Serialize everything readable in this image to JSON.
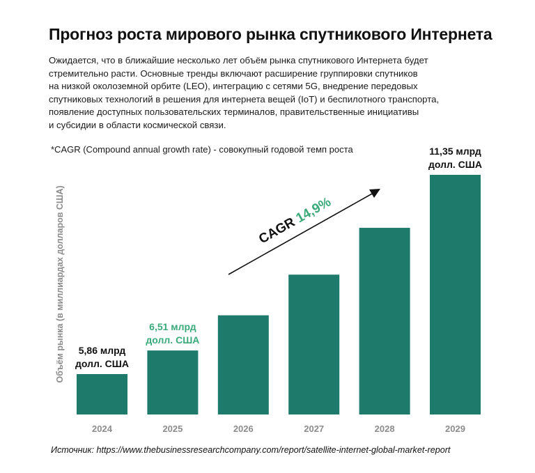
{
  "title": "Прогноз роста мирового рынка спутникового Интернета",
  "description": [
    "Ожидается, что в ближайшие несколько лет объём рынка спутникового Интернета будет",
    "стремительно расти. Основные тренды включают расширение группировки спутников",
    "на низкой околоземной орбите (LEO), интеграцию с сетями 5G, внедрение передовых",
    "спутниковых технологий в  решения для интернета вещей (IoT) и беспилотного транспорта,",
    "появление доступных пользовательских терминалов, правительственные инициативы",
    "и субсидии в области космической связи."
  ],
  "note": "*CAGR (Compound annual growth rate) - совокупный годовой темп роста",
  "source": "Источник: https://www.thebusinessresearchcompany.com/report/satellite-internet-global-market-report",
  "colors": {
    "bar": "#1e7a6b",
    "highlight": "#3aaa7a",
    "axis_text": "#8c8c8c",
    "text": "#111111"
  },
  "chart_data": {
    "type": "bar",
    "categories": [
      "2024",
      "2025",
      "2026",
      "2027",
      "2028",
      "2029"
    ],
    "values": [
      5.86,
      6.51,
      7.48,
      8.6,
      9.89,
      11.35
    ],
    "ylabel": "Объём рынка (в миллиардах долларов США)",
    "data_labels": [
      {
        "category": "2024",
        "lines": [
          "5,86 млрд",
          "долл. США"
        ],
        "highlight": false
      },
      {
        "category": "2025",
        "lines": [
          "6,51 млрд",
          "долл. США"
        ],
        "highlight": true
      },
      {
        "category": "2029",
        "lines": [
          "11,35 млрд",
          "долл. США"
        ],
        "highlight": false
      }
    ],
    "annotation": {
      "prefix": "CAGR",
      "value": "14,9%"
    },
    "grid": false,
    "legend": "none"
  }
}
